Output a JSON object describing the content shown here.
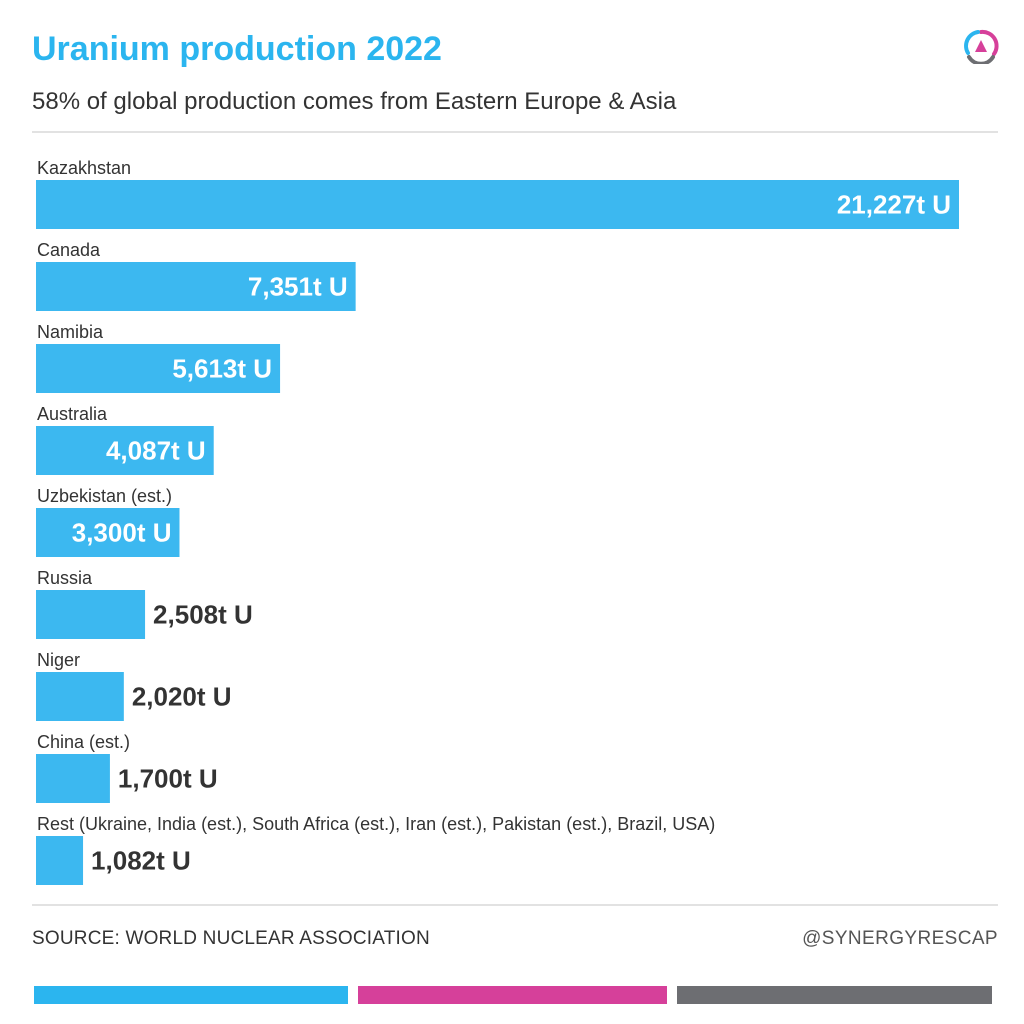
{
  "header": {
    "title": "Uranium production 2022",
    "subtitle": "58% of global production comes from Eastern Europe & Asia"
  },
  "chart_data": {
    "type": "bar",
    "orientation": "horizontal",
    "title": "Uranium production 2022",
    "subtitle": "58% of global production comes from Eastern Europe & Asia",
    "unit": "t U",
    "categories": [
      "Kazakhstan",
      "Canada",
      "Namibia",
      "Australia",
      "Uzbekistan (est.)",
      "Russia",
      "Niger",
      "China (est.)",
      "Rest (Ukraine, India (est.), South Africa (est.), Iran (est.), Pakistan (est.), Brazil, USA)"
    ],
    "values": [
      21227,
      7351,
      5613,
      4087,
      3300,
      2508,
      2020,
      1700,
      1082
    ],
    "value_labels": [
      "21,227t U",
      "7,351t U",
      "5,613t U",
      "4,087t U",
      "3,300t U",
      "2,508t U",
      "2,020t U",
      "1,700t U",
      "1,082t U"
    ],
    "label_inside": [
      true,
      true,
      true,
      true,
      true,
      false,
      false,
      false,
      false
    ],
    "xlim": [
      0,
      21227
    ],
    "grid": false,
    "legend": "none",
    "bar_color": "#3cb8f0",
    "label_inside_color": "#ffffff",
    "label_outside_color": "#333333"
  },
  "footer": {
    "source": "SOURCE: WORLD NUCLEAR ASSOCIATION",
    "credit": "@SYNERGYRESCAP"
  },
  "brand": {
    "logo_icon": "tri-arc-logo-icon",
    "strip_colors": [
      "#2bb5ef",
      "#d6409a",
      "#6d6e72"
    ]
  }
}
